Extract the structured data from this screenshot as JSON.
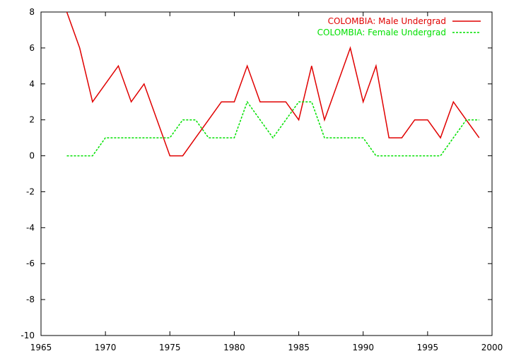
{
  "chart_data": {
    "type": "line",
    "title": "",
    "xlabel": "",
    "ylabel": "",
    "xlim": [
      1965,
      2000
    ],
    "ylim": [
      -10,
      8
    ],
    "xticks": [
      1965,
      1970,
      1975,
      1980,
      1985,
      1990,
      1995,
      2000
    ],
    "yticks": [
      -10,
      -8,
      -6,
      -4,
      -2,
      0,
      2,
      4,
      6,
      8
    ],
    "grid": false,
    "legend_position": "top-right",
    "series": [
      {
        "name": "COLOMBIA: Male Undergrad",
        "color": "#e00000",
        "dash": "solid",
        "x": [
          1967,
          1968,
          1969,
          1970,
          1971,
          1972,
          1973,
          1974,
          1975,
          1976,
          1977,
          1978,
          1979,
          1980,
          1981,
          1982,
          1983,
          1984,
          1985,
          1986,
          1987,
          1988,
          1989,
          1990,
          1991,
          1992,
          1993,
          1994,
          1995,
          1996,
          1997,
          1998,
          1999
        ],
        "y": [
          8,
          6,
          3,
          4,
          5,
          3,
          4,
          2,
          0,
          0,
          1,
          2,
          3,
          3,
          5,
          3,
          3,
          3,
          2,
          5,
          2,
          4,
          6,
          3,
          5,
          1,
          1,
          2,
          2,
          1,
          3,
          2,
          1
        ]
      },
      {
        "name": "COLOMBIA: Female Undergrad",
        "color": "#00e000",
        "dash": "dashed",
        "x": [
          1967,
          1968,
          1969,
          1970,
          1971,
          1972,
          1973,
          1974,
          1975,
          1976,
          1977,
          1978,
          1979,
          1980,
          1981,
          1982,
          1983,
          1984,
          1985,
          1986,
          1987,
          1988,
          1989,
          1990,
          1991,
          1992,
          1993,
          1994,
          1995,
          1996,
          1997,
          1998,
          1999
        ],
        "y": [
          0,
          0,
          0,
          1,
          1,
          1,
          1,
          1,
          1,
          2,
          2,
          1,
          1,
          1,
          3,
          2,
          1,
          2,
          3,
          3,
          1,
          1,
          1,
          1,
          0,
          0,
          0,
          0,
          0,
          0,
          1,
          2,
          2
        ]
      }
    ]
  }
}
